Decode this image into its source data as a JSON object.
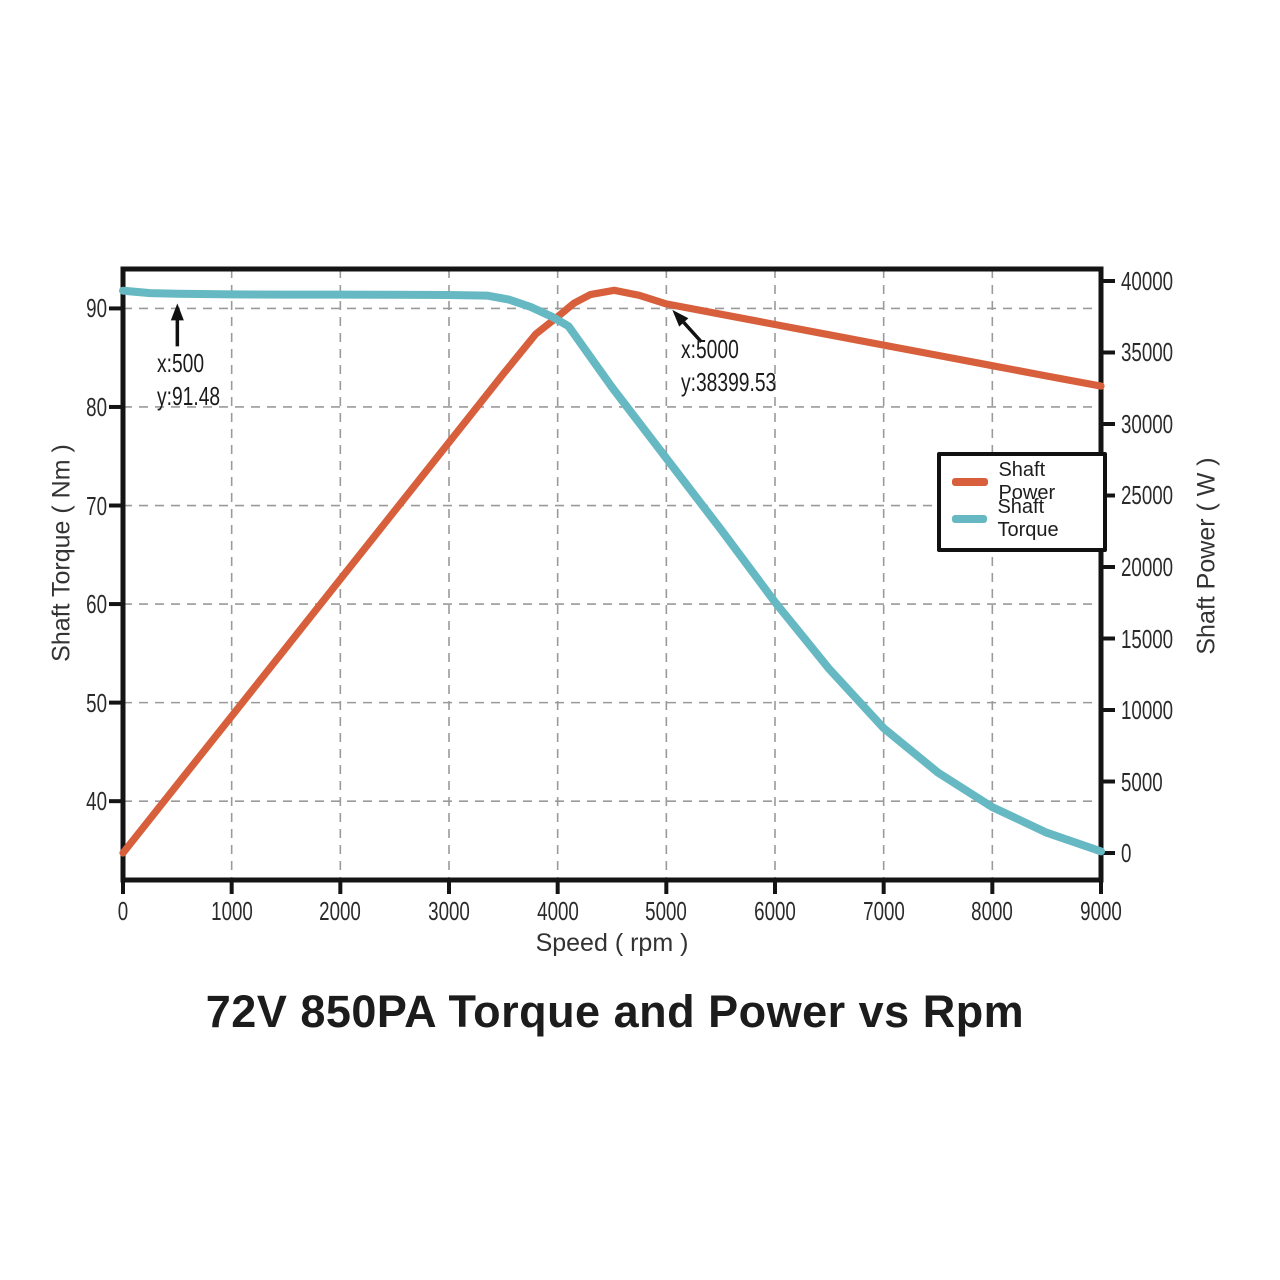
{
  "figure": {
    "background": "#ffffff"
  },
  "chart_data": {
    "type": "line",
    "title": "72V 850PA Torque and Power vs Rpm",
    "xlabel": "Speed ( rpm )",
    "ylabel_left": "Shaft Torque ( Nm )",
    "ylabel_right": "Shaft Power ( W )",
    "x_range": [
      0,
      9000
    ],
    "x_ticks": [
      0,
      1000,
      2000,
      3000,
      4000,
      5000,
      6000,
      7000,
      8000,
      9000
    ],
    "y_left_range": [
      32,
      94
    ],
    "y_left_ticks": [
      40,
      50,
      60,
      70,
      80,
      90
    ],
    "y_right_range": [
      -1888,
      40839
    ],
    "y_right_ticks": [
      0,
      5000,
      10000,
      15000,
      20000,
      25000,
      30000,
      35000,
      40000
    ],
    "frame_color": "#141414",
    "grid": {
      "style": "dashed",
      "color": "#9a9a9a",
      "x_lines": [
        1000,
        2000,
        3000,
        4000,
        5000,
        6000,
        7000,
        8000
      ],
      "y_lines": [
        40,
        50,
        60,
        70,
        80,
        90
      ]
    },
    "legend": {
      "position": "upper right",
      "entries": [
        "Shaft Power",
        "Shaft Torque"
      ]
    },
    "series": [
      {
        "name": "Shaft Power",
        "axis": "right",
        "color": "#D85F3B",
        "line_width": 7.2,
        "points": [
          [
            0,
            0
          ],
          [
            500,
            4790
          ],
          [
            1000,
            9570
          ],
          [
            1500,
            14360
          ],
          [
            2000,
            19140
          ],
          [
            2500,
            23930
          ],
          [
            3000,
            28710
          ],
          [
            3500,
            33500
          ],
          [
            3800,
            36300
          ],
          [
            4000,
            37500
          ],
          [
            4150,
            38450
          ],
          [
            4300,
            39050
          ],
          [
            4520,
            39350
          ],
          [
            4750,
            39000
          ],
          [
            5000,
            38399.53
          ],
          [
            5500,
            37680
          ],
          [
            6000,
            36960
          ],
          [
            6500,
            36240
          ],
          [
            7000,
            35520
          ],
          [
            7500,
            34800
          ],
          [
            8000,
            34080
          ],
          [
            8500,
            33360
          ],
          [
            9000,
            32650
          ]
        ]
      },
      {
        "name": "Shaft Torque",
        "axis": "left",
        "color": "#66B9C3",
        "line_width": 8,
        "points": [
          [
            0,
            91.8
          ],
          [
            250,
            91.55
          ],
          [
            500,
            91.48
          ],
          [
            1000,
            91.42
          ],
          [
            1500,
            91.4
          ],
          [
            2000,
            91.4
          ],
          [
            2500,
            91.38
          ],
          [
            3000,
            91.36
          ],
          [
            3350,
            91.3
          ],
          [
            3550,
            90.9
          ],
          [
            3750,
            90.15
          ],
          [
            3950,
            89.15
          ],
          [
            4100,
            88.2
          ],
          [
            4500,
            82.0
          ],
          [
            5000,
            74.8
          ],
          [
            5500,
            67.6
          ],
          [
            6000,
            60.2
          ],
          [
            6500,
            53.4
          ],
          [
            7000,
            47.4
          ],
          [
            7500,
            42.9
          ],
          [
            8000,
            39.4
          ],
          [
            8500,
            36.8
          ],
          [
            9000,
            34.9
          ]
        ]
      }
    ],
    "annotations": [
      {
        "line1": "x:500",
        "line2": "y:91.48",
        "target": [
          500,
          91.48
        ],
        "axis": "left",
        "direction": "up"
      },
      {
        "line1": "x:5000",
        "line2": "y:38399.53",
        "target": [
          5000,
          38399.53
        ],
        "axis": "right",
        "direction": "up-left"
      }
    ]
  }
}
